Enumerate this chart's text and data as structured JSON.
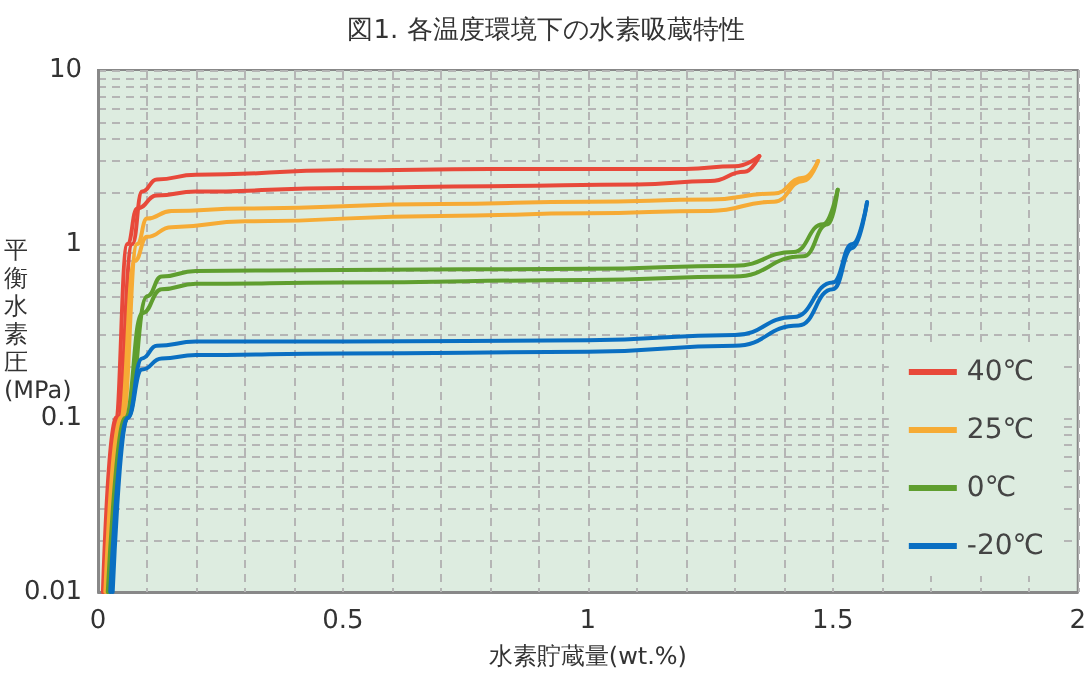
{
  "chart_data": {
    "type": "line",
    "title": "図1. 各温度環境下の水素吸蔵特性",
    "xlabel": "水素貯蔵量(wt.%)",
    "ylabel": "平衡水素圧(MPa)",
    "xlim": [
      0,
      2
    ],
    "xticks": [
      0,
      0.5,
      1,
      1.5,
      2
    ],
    "ylim": [
      0.01,
      10
    ],
    "yticks": [
      0.01,
      0.1,
      1,
      10
    ],
    "log": "y",
    "grid": true,
    "legend": "bottom right",
    "marker": "none",
    "line_style": "solid",
    "series": [
      {
        "name": "40℃",
        "color": "#e8493a",
        "x": [
          0.012,
          0.04,
          0.07,
          0.09,
          0.12,
          0.2,
          0.5,
          0.8,
          1.0,
          1.2,
          1.3,
          1.35
        ],
        "values": [
          0.01,
          0.1,
          1,
          2.0,
          2.35,
          2.5,
          2.65,
          2.7,
          2.7,
          2.7,
          2.8,
          3.2
        ]
      },
      {
        "color": "#e8493a",
        "x": [
          0.01,
          0.035,
          0.06,
          0.08,
          0.12,
          0.2,
          0.5,
          0.8,
          1.1,
          1.25,
          1.32,
          1.35
        ],
        "values": [
          0.01,
          0.1,
          1,
          1.6,
          1.9,
          2.0,
          2.1,
          2.15,
          2.2,
          2.3,
          2.6,
          3.2
        ]
      },
      {
        "name": "25℃",
        "color": "#f6ab35",
        "x": [
          0.02,
          0.05,
          0.08,
          0.1,
          0.15,
          0.3,
          0.7,
          1.0,
          1.25,
          1.38,
          1.44,
          1.47
        ],
        "values": [
          0.01,
          0.1,
          1,
          1.4,
          1.55,
          1.6,
          1.7,
          1.75,
          1.8,
          1.95,
          2.4,
          3.0
        ]
      },
      {
        "color": "#f6ab35",
        "x": [
          0.015,
          0.045,
          0.075,
          0.1,
          0.15,
          0.3,
          0.7,
          1.0,
          1.25,
          1.38,
          1.44,
          1.47
        ],
        "values": [
          0.01,
          0.1,
          0.8,
          1.1,
          1.25,
          1.35,
          1.45,
          1.5,
          1.55,
          1.75,
          2.3,
          3.0
        ]
      },
      {
        "name": "0℃",
        "color": "#5f9e2f",
        "x": [
          0.025,
          0.06,
          0.1,
          0.13,
          0.2,
          0.5,
          1.0,
          1.3,
          1.42,
          1.48,
          1.51
        ],
        "values": [
          0.01,
          0.1,
          0.5,
          0.65,
          0.7,
          0.71,
          0.72,
          0.75,
          0.9,
          1.3,
          2.05
        ]
      },
      {
        "color": "#5f9e2f",
        "x": [
          0.02,
          0.055,
          0.09,
          0.13,
          0.2,
          0.5,
          1.0,
          1.3,
          1.44,
          1.49,
          1.51
        ],
        "values": [
          0.01,
          0.1,
          0.4,
          0.55,
          0.59,
          0.6,
          0.62,
          0.65,
          0.85,
          1.3,
          2.05
        ]
      },
      {
        "name": "-20℃",
        "color": "#0a6fc2",
        "x": [
          0.03,
          0.06,
          0.09,
          0.12,
          0.2,
          0.5,
          1.0,
          1.3,
          1.42,
          1.5,
          1.54,
          1.57
        ],
        "values": [
          0.01,
          0.1,
          0.22,
          0.26,
          0.275,
          0.275,
          0.28,
          0.3,
          0.38,
          0.6,
          1.0,
          1.74
        ]
      },
      {
        "color": "#0a6fc2",
        "x": [
          0.025,
          0.06,
          0.09,
          0.13,
          0.2,
          0.5,
          1.0,
          1.3,
          1.43,
          1.5,
          1.54,
          1.57
        ],
        "values": [
          0.01,
          0.1,
          0.19,
          0.22,
          0.23,
          0.235,
          0.24,
          0.26,
          0.34,
          0.55,
          0.95,
          1.74
        ]
      }
    ]
  }
}
